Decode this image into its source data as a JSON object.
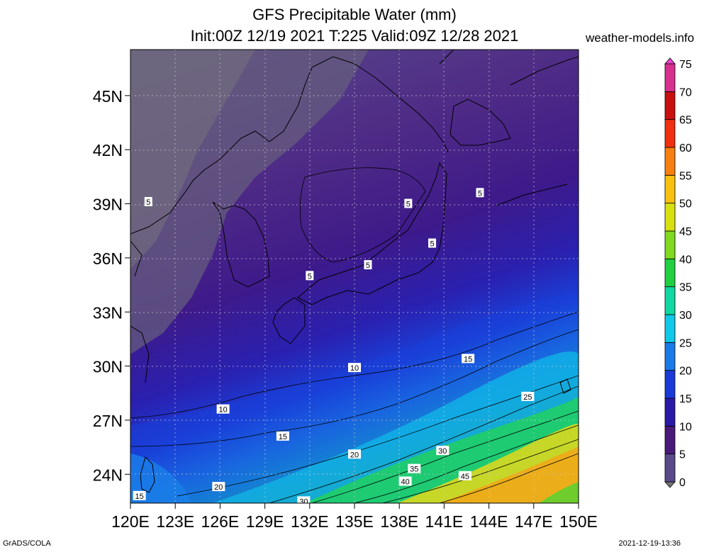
{
  "title_line1": "GFS Precipitable Water (mm)",
  "title_line2": "Init:00Z 12/19 2021 T:225 Valid:09Z 12/28 2021",
  "source": "weather-models.info",
  "footer_left": "GrADS/COLA",
  "footer_right": "2021-12-19-13:36",
  "lat_labels": [
    "45N",
    "42N",
    "39N",
    "36N",
    "33N",
    "30N",
    "27N",
    "24N"
  ],
  "lon_labels": [
    "120E",
    "123E",
    "126E",
    "129E",
    "132E",
    "135E",
    "138E",
    "141E",
    "144E",
    "147E",
    "150E"
  ],
  "colorbar": {
    "labels": [
      "0",
      "5",
      "10",
      "15",
      "20",
      "25",
      "30",
      "35",
      "40",
      "45",
      "50",
      "55",
      "60",
      "65",
      "70",
      "75"
    ],
    "colors": [
      "#757575",
      "#5a4a8a",
      "#4a1a7a",
      "#2a1aa8",
      "#1a3ad8",
      "#1a7ae8",
      "#10c8e8",
      "#10d8a0",
      "#20d040",
      "#80d820",
      "#d8e010",
      "#f8c010",
      "#f88010",
      "#f03010",
      "#c81010",
      "#d83090",
      "#f040d0"
    ]
  },
  "contour_labels": [
    {
      "text": "5",
      "lon": 121.2,
      "lat": 39.1
    },
    {
      "text": "5",
      "lon": 138.6,
      "lat": 39.0
    },
    {
      "text": "5",
      "lon": 143.4,
      "lat": 39.6
    },
    {
      "text": "5",
      "lon": 140.2,
      "lat": 36.8
    },
    {
      "text": "5",
      "lon": 132.0,
      "lat": 35.0
    },
    {
      "text": "5",
      "lon": 135.9,
      "lat": 35.6
    },
    {
      "text": "10",
      "lon": 126.2,
      "lat": 27.6
    },
    {
      "text": "10",
      "lon": 135.0,
      "lat": 29.9
    },
    {
      "text": "15",
      "lon": 130.2,
      "lat": 26.1
    },
    {
      "text": "15",
      "lon": 142.6,
      "lat": 30.4
    },
    {
      "text": "15",
      "lon": 120.6,
      "lat": 22.8
    },
    {
      "text": "20",
      "lon": 125.9,
      "lat": 23.3
    },
    {
      "text": "20",
      "lon": 135.0,
      "lat": 25.1
    },
    {
      "text": "25",
      "lon": 146.6,
      "lat": 28.3
    },
    {
      "text": "30",
      "lon": 140.9,
      "lat": 25.3
    },
    {
      "text": "35",
      "lon": 139.0,
      "lat": 24.3
    },
    {
      "text": "40",
      "lon": 138.4,
      "lat": 23.6
    },
    {
      "text": "45",
      "lon": 142.4,
      "lat": 23.9
    },
    {
      "text": "30",
      "lon": 131.6,
      "lat": 22.5
    }
  ]
}
